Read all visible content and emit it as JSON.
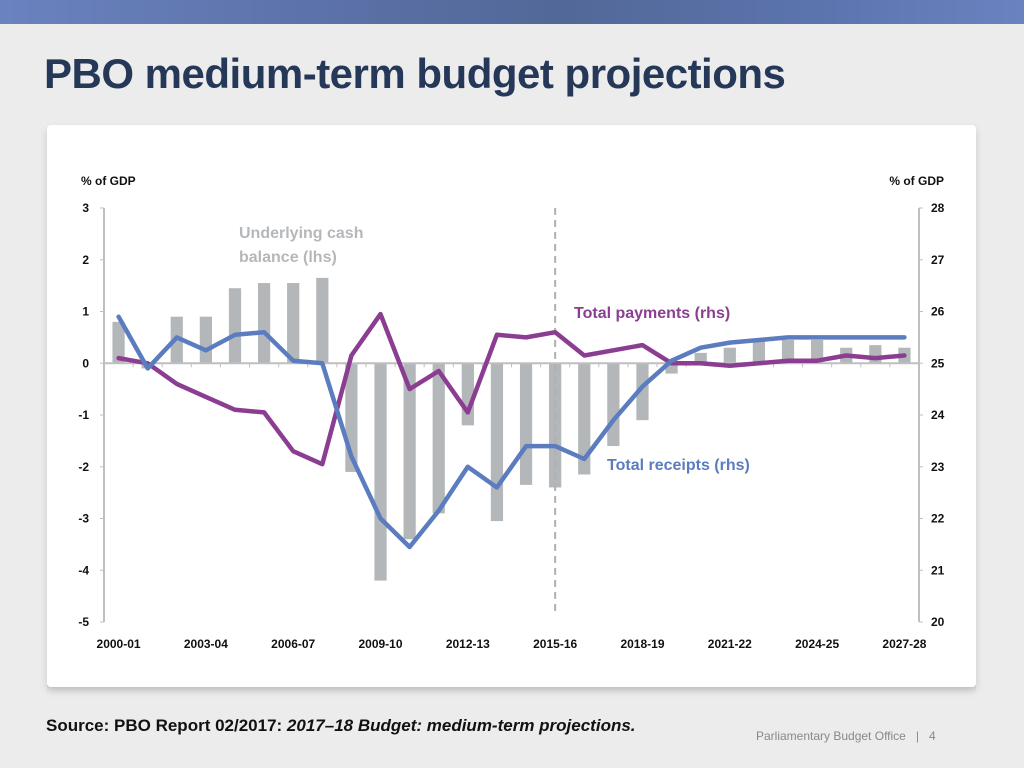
{
  "slide": {
    "title": "PBO medium-term budget projections",
    "source_prefix": "Source: PBO Report 02/2017: ",
    "source_italic": "2017–18 Budget: medium-term projections.",
    "footer_org": "Parliamentary Budget Office",
    "footer_sep": "|",
    "page_number": "4"
  },
  "colors": {
    "header_bar": "#5a70a6",
    "title": "#263858",
    "bars": "#b3b7ba",
    "receipts": "#5b7dbf",
    "payments": "#8b3e91",
    "axis": "#bfbfbf"
  },
  "chart_data": {
    "type": "bar+line",
    "title": "",
    "ylabel_left": "% of GDP",
    "ylabel_right": "% of GDP",
    "ylim_left": [
      -5,
      3
    ],
    "ylim_right": [
      20,
      28
    ],
    "yticks_left": [
      "3",
      "2",
      "1",
      "0",
      "-1",
      "-2",
      "-3",
      "-4",
      "-5"
    ],
    "yticks_right": [
      "28",
      "27",
      "26",
      "25",
      "24",
      "23",
      "22",
      "21",
      "20"
    ],
    "categories": [
      "2000-01",
      "2001-02",
      "2002-03",
      "2003-04",
      "2004-05",
      "2005-06",
      "2006-07",
      "2007-08",
      "2008-09",
      "2009-10",
      "2010-11",
      "2011-12",
      "2012-13",
      "2013-14",
      "2014-15",
      "2015-16",
      "2016-17",
      "2017-18",
      "2018-19",
      "2019-20",
      "2020-21",
      "2021-22",
      "2022-23",
      "2023-24",
      "2024-25",
      "2025-26",
      "2026-27",
      "2027-28"
    ],
    "xtick_labels": [
      "2000-01",
      "2003-04",
      "2006-07",
      "2009-10",
      "2012-13",
      "2015-16",
      "2018-19",
      "2021-22",
      "2024-25",
      "2027-28"
    ],
    "projection_start": "2015-16",
    "grid": false,
    "series": [
      {
        "name": "Underlying cash balance (lhs)",
        "type": "bar",
        "axis": "left",
        "values": [
          0.8,
          -0.1,
          0.9,
          0.9,
          1.45,
          1.55,
          1.55,
          1.65,
          -2.1,
          -4.2,
          -3.4,
          -2.9,
          -1.2,
          -3.05,
          -2.35,
          -2.4,
          -2.15,
          -1.6,
          -1.1,
          -0.2,
          0.2,
          0.3,
          0.45,
          0.45,
          0.45,
          0.3,
          0.35,
          0.3
        ]
      },
      {
        "name": "Total receipts (rhs)",
        "type": "line",
        "axis": "right",
        "values": [
          25.9,
          24.9,
          25.5,
          25.25,
          25.55,
          25.6,
          25.05,
          25.0,
          23.2,
          22.0,
          21.45,
          22.15,
          23.0,
          22.6,
          23.4,
          23.4,
          23.15,
          23.9,
          24.55,
          25.05,
          25.3,
          25.4,
          25.45,
          25.5,
          25.5,
          25.5,
          25.5,
          25.5
        ]
      },
      {
        "name": "Total payments (rhs)",
        "type": "line",
        "axis": "right",
        "values": [
          25.1,
          25.0,
          24.6,
          24.35,
          24.1,
          24.05,
          23.3,
          23.05,
          25.15,
          25.95,
          24.5,
          24.85,
          24.05,
          25.55,
          25.5,
          25.6,
          25.15,
          25.25,
          25.35,
          25.0,
          25.0,
          24.95,
          25.0,
          25.05,
          25.05,
          25.15,
          25.1,
          25.15
        ]
      }
    ],
    "annotations": [
      {
        "text_lines": [
          "Underlying cash",
          "balance (lhs)"
        ],
        "series": "bars"
      },
      {
        "text_lines": [
          "Total payments (rhs)"
        ],
        "series": "payments"
      },
      {
        "text_lines": [
          "Total receipts (rhs)"
        ],
        "series": "receipts"
      }
    ]
  }
}
